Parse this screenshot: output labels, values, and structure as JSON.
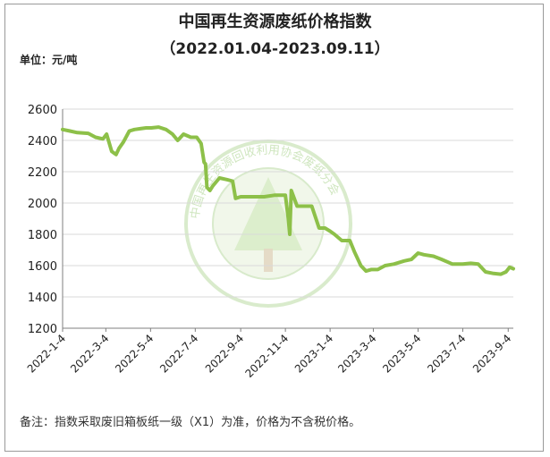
{
  "title": "中国再生资源废纸价格指数",
  "subtitle": "（2022.01.04-2023.09.11）",
  "unit_label": "单位：元/吨",
  "footnote": "备注：指数采取废旧箱板纸一级（X1）为准，价格为不含税价格。",
  "watermark_text": "中国再生资源回收利用协会废纸分会",
  "colors": {
    "line": "#8dc049",
    "grid": "#d9d9d9",
    "axis": "#7f7f7f",
    "watermark": "#cfe6bf"
  },
  "chart_data": {
    "type": "line",
    "title": "中国再生资源废纸价格指数",
    "subtitle": "（2022.01.04-2023.09.11）",
    "ylabel": "单位：元/吨",
    "ylim": [
      1200,
      2600
    ],
    "yticks": [
      1200,
      1400,
      1600,
      1800,
      2000,
      2200,
      2400,
      2600
    ],
    "xlim": [
      "2022-01-04",
      "2023-09-11"
    ],
    "xtick_labels": [
      "2022-1-4",
      "2022-3-4",
      "2022-5-4",
      "2022-7-4",
      "2022-9-4",
      "2022-11-4",
      "2023-1-4",
      "2023-3-4",
      "2023-5-4",
      "2023-7-4",
      "2023-9-4"
    ],
    "grid": "horizontal",
    "legend": "none",
    "series": [
      {
        "x": [
          "2022-01-04",
          "2022-01-14",
          "2022-01-24",
          "2022-02-08",
          "2022-02-18",
          "2022-02-28",
          "2022-03-05",
          "2022-03-12",
          "2022-03-18",
          "2022-03-22",
          "2022-03-28",
          "2022-04-05",
          "2022-04-12",
          "2022-04-20",
          "2022-04-28",
          "2022-05-05",
          "2022-05-15",
          "2022-05-25",
          "2022-06-03",
          "2022-06-10",
          "2022-06-18",
          "2022-06-28",
          "2022-07-06",
          "2022-07-12",
          "2022-07-16",
          "2022-07-18",
          "2022-07-20",
          "2022-07-24",
          "2022-07-28",
          "2022-08-06",
          "2022-08-16",
          "2022-08-24",
          "2022-08-28",
          "2022-09-04",
          "2022-09-20",
          "2022-10-06",
          "2022-10-20",
          "2022-11-01",
          "2022-11-04",
          "2022-11-08",
          "2022-11-10",
          "2022-11-12",
          "2022-11-20",
          "2022-12-01",
          "2022-12-10",
          "2022-12-20",
          "2022-12-28",
          "2023-01-04",
          "2023-01-10",
          "2023-01-20",
          "2023-01-31",
          "2023-02-06",
          "2023-02-15",
          "2023-02-22",
          "2023-03-01",
          "2023-03-10",
          "2023-03-20",
          "2023-04-01",
          "2023-04-15",
          "2023-04-25",
          "2023-05-04",
          "2023-05-12",
          "2023-05-25",
          "2023-06-05",
          "2023-06-20",
          "2023-07-04",
          "2023-07-15",
          "2023-07-25",
          "2023-08-04",
          "2023-08-15",
          "2023-08-25",
          "2023-09-01",
          "2023-09-06",
          "2023-09-11"
        ],
        "values": [
          2470,
          2460,
          2450,
          2445,
          2420,
          2410,
          2440,
          2330,
          2310,
          2350,
          2390,
          2460,
          2470,
          2475,
          2480,
          2480,
          2485,
          2470,
          2440,
          2400,
          2440,
          2420,
          2420,
          2380,
          2260,
          2250,
          2100,
          2080,
          2110,
          2160,
          2150,
          2140,
          2030,
          2040,
          2040,
          2040,
          2050,
          2050,
          2050,
          1900,
          1800,
          2080,
          1980,
          1980,
          1980,
          1840,
          1840,
          1820,
          1800,
          1760,
          1760,
          1690,
          1600,
          1565,
          1575,
          1575,
          1600,
          1610,
          1630,
          1640,
          1680,
          1670,
          1660,
          1640,
          1610,
          1610,
          1615,
          1610,
          1560,
          1550,
          1545,
          1560,
          1590,
          1580
        ]
      }
    ]
  }
}
